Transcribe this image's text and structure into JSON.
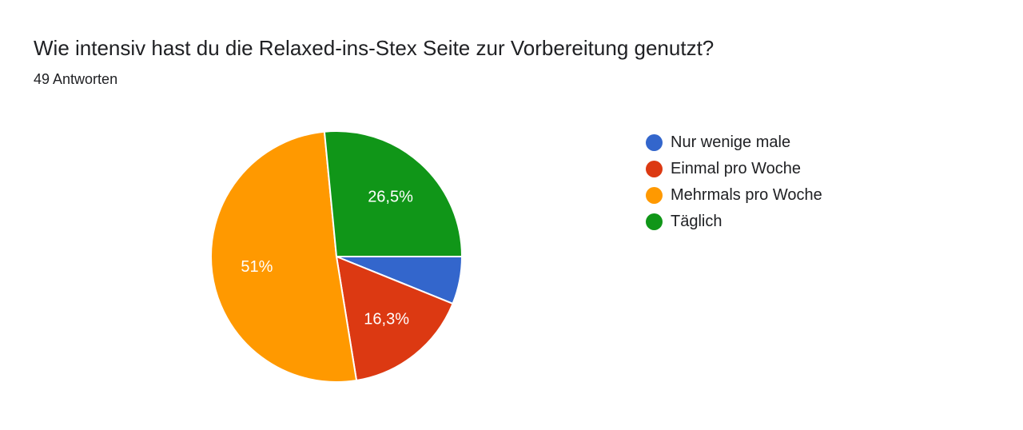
{
  "header": {
    "question": "Wie intensiv hast du die Relaxed-ins-Stex Seite zur Vorbereitung genutzt?",
    "responses": "49 Antworten"
  },
  "chart_data": {
    "type": "pie",
    "total": 49,
    "legend_position": "right",
    "slices": [
      {
        "label": "Nur wenige male",
        "value": 3,
        "percent_label": "",
        "color": "#3366cc"
      },
      {
        "label": "Einmal pro Woche",
        "value": 8,
        "percent_label": "16,3%",
        "color": "#dc3912"
      },
      {
        "label": "Mehrmals pro Woche",
        "value": 25,
        "percent_label": "51%",
        "color": "#ff9900"
      },
      {
        "label": "Täglich",
        "value": 13,
        "percent_label": "26,5%",
        "color": "#109618"
      }
    ]
  }
}
